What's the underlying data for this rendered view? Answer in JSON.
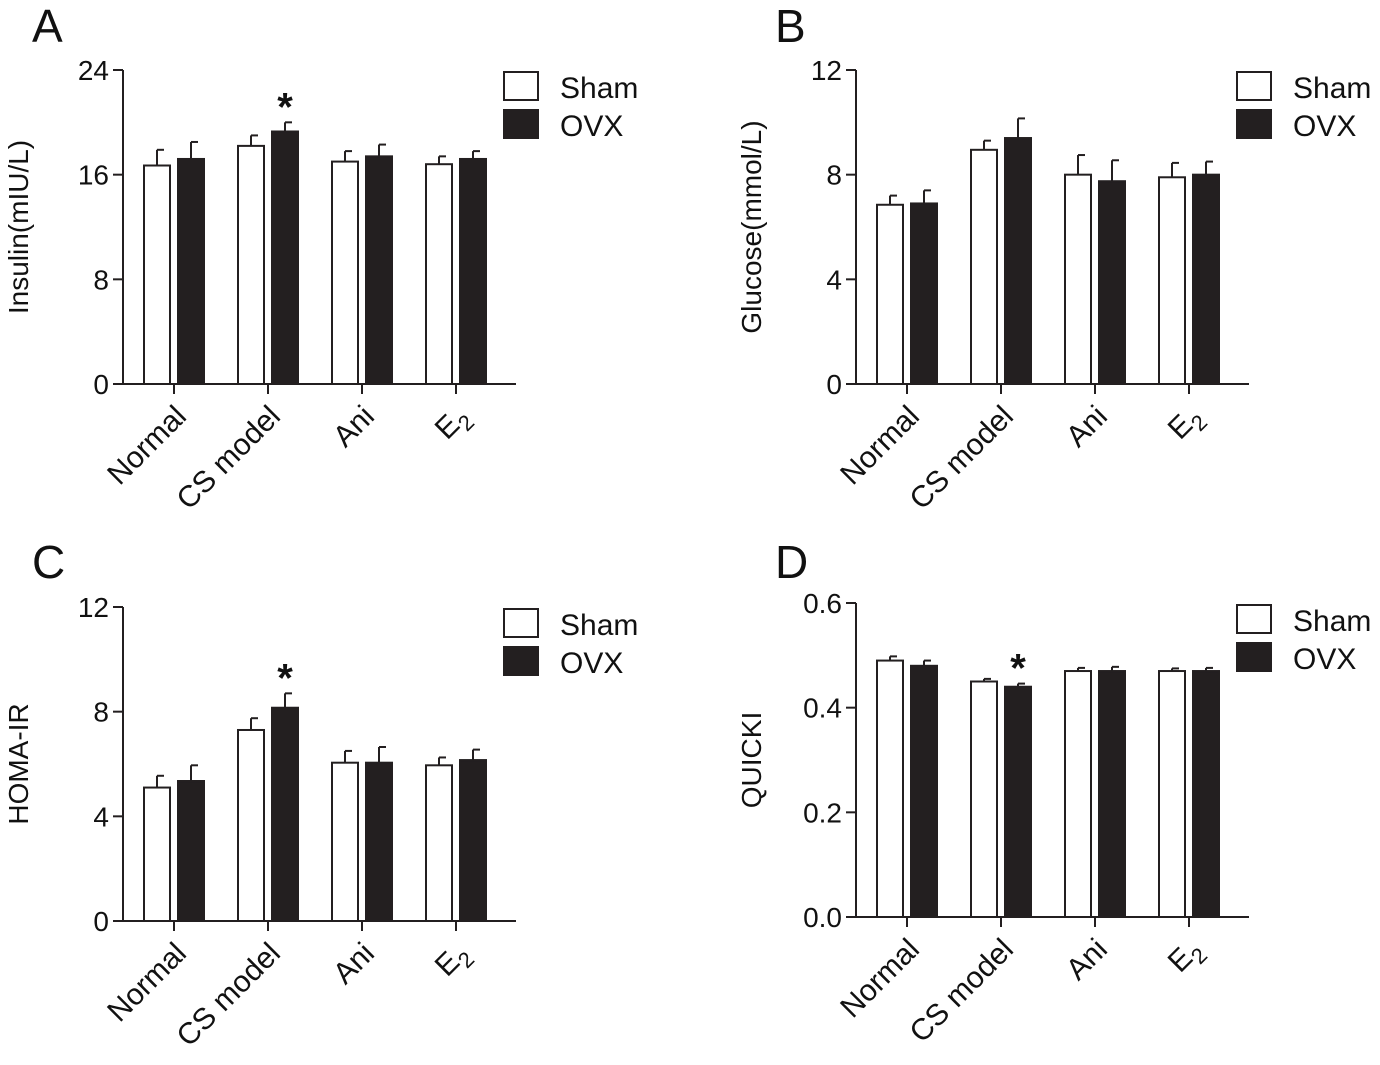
{
  "colors": {
    "sham_fill": "#ffffff",
    "ovx_fill": "#231f20",
    "stroke": "#231f20"
  },
  "chart_data": [
    {
      "panel": "A",
      "type": "bar",
      "ylabel": "Insulin(mIU/L)",
      "ylim": [
        0,
        24
      ],
      "yticks": [
        "0",
        "8",
        "16",
        "24"
      ],
      "categories": [
        "Normal",
        "CS model",
        "Ani",
        "E2"
      ],
      "series": [
        {
          "name": "Sham",
          "values": [
            16.7,
            18.2,
            17.0,
            16.8
          ],
          "errors": [
            1.2,
            0.8,
            0.8,
            0.6
          ]
        },
        {
          "name": "OVX",
          "values": [
            17.2,
            19.3,
            17.4,
            17.2
          ],
          "errors": [
            1.3,
            0.7,
            0.9,
            0.6
          ]
        }
      ],
      "annotations": [
        {
          "text": "*",
          "category": 1,
          "series": 1
        }
      ],
      "legend": "top-right"
    },
    {
      "panel": "B",
      "type": "bar",
      "ylabel": "Glucose(mmol/L)",
      "ylim": [
        0,
        12
      ],
      "yticks": [
        "0",
        "4",
        "8",
        "12"
      ],
      "categories": [
        "Normal",
        "CS model",
        "Ani",
        "E2"
      ],
      "series": [
        {
          "name": "Sham",
          "values": [
            6.85,
            8.95,
            8.0,
            7.9
          ],
          "errors": [
            0.35,
            0.35,
            0.75,
            0.55
          ]
        },
        {
          "name": "OVX",
          "values": [
            6.9,
            9.4,
            7.75,
            8.0
          ],
          "errors": [
            0.5,
            0.75,
            0.8,
            0.5
          ]
        }
      ],
      "annotations": [],
      "legend": "top-right"
    },
    {
      "panel": "C",
      "type": "bar",
      "ylabel": "HOMA-IR",
      "ylim": [
        0,
        12
      ],
      "yticks": [
        "0",
        "4",
        "8",
        "12"
      ],
      "categories": [
        "Normal",
        "CS model",
        "Ani",
        "E2"
      ],
      "series": [
        {
          "name": "Sham",
          "values": [
            5.1,
            7.3,
            6.05,
            5.95
          ],
          "errors": [
            0.45,
            0.45,
            0.45,
            0.3
          ]
        },
        {
          "name": "OVX",
          "values": [
            5.35,
            8.15,
            6.05,
            6.15
          ],
          "errors": [
            0.6,
            0.55,
            0.6,
            0.4
          ]
        }
      ],
      "annotations": [
        {
          "text": "*",
          "category": 1,
          "series": 1
        }
      ],
      "legend": "top-right"
    },
    {
      "panel": "D",
      "type": "bar",
      "ylabel": "QUICKI",
      "ylim": [
        0,
        0.6
      ],
      "yticks": [
        "0.0",
        "0.2",
        "0.4",
        "0.6"
      ],
      "categories": [
        "Normal",
        "CS model",
        "Ani",
        "E2"
      ],
      "series": [
        {
          "name": "Sham",
          "values": [
            0.49,
            0.45,
            0.47,
            0.47
          ],
          "errors": [
            0.008,
            0.005,
            0.006,
            0.005
          ]
        },
        {
          "name": "OVX",
          "values": [
            0.48,
            0.44,
            0.47,
            0.47
          ],
          "errors": [
            0.01,
            0.006,
            0.008,
            0.006
          ]
        }
      ],
      "annotations": [
        {
          "text": "*",
          "category": 1,
          "series": 1
        }
      ],
      "legend": "top-right"
    }
  ]
}
